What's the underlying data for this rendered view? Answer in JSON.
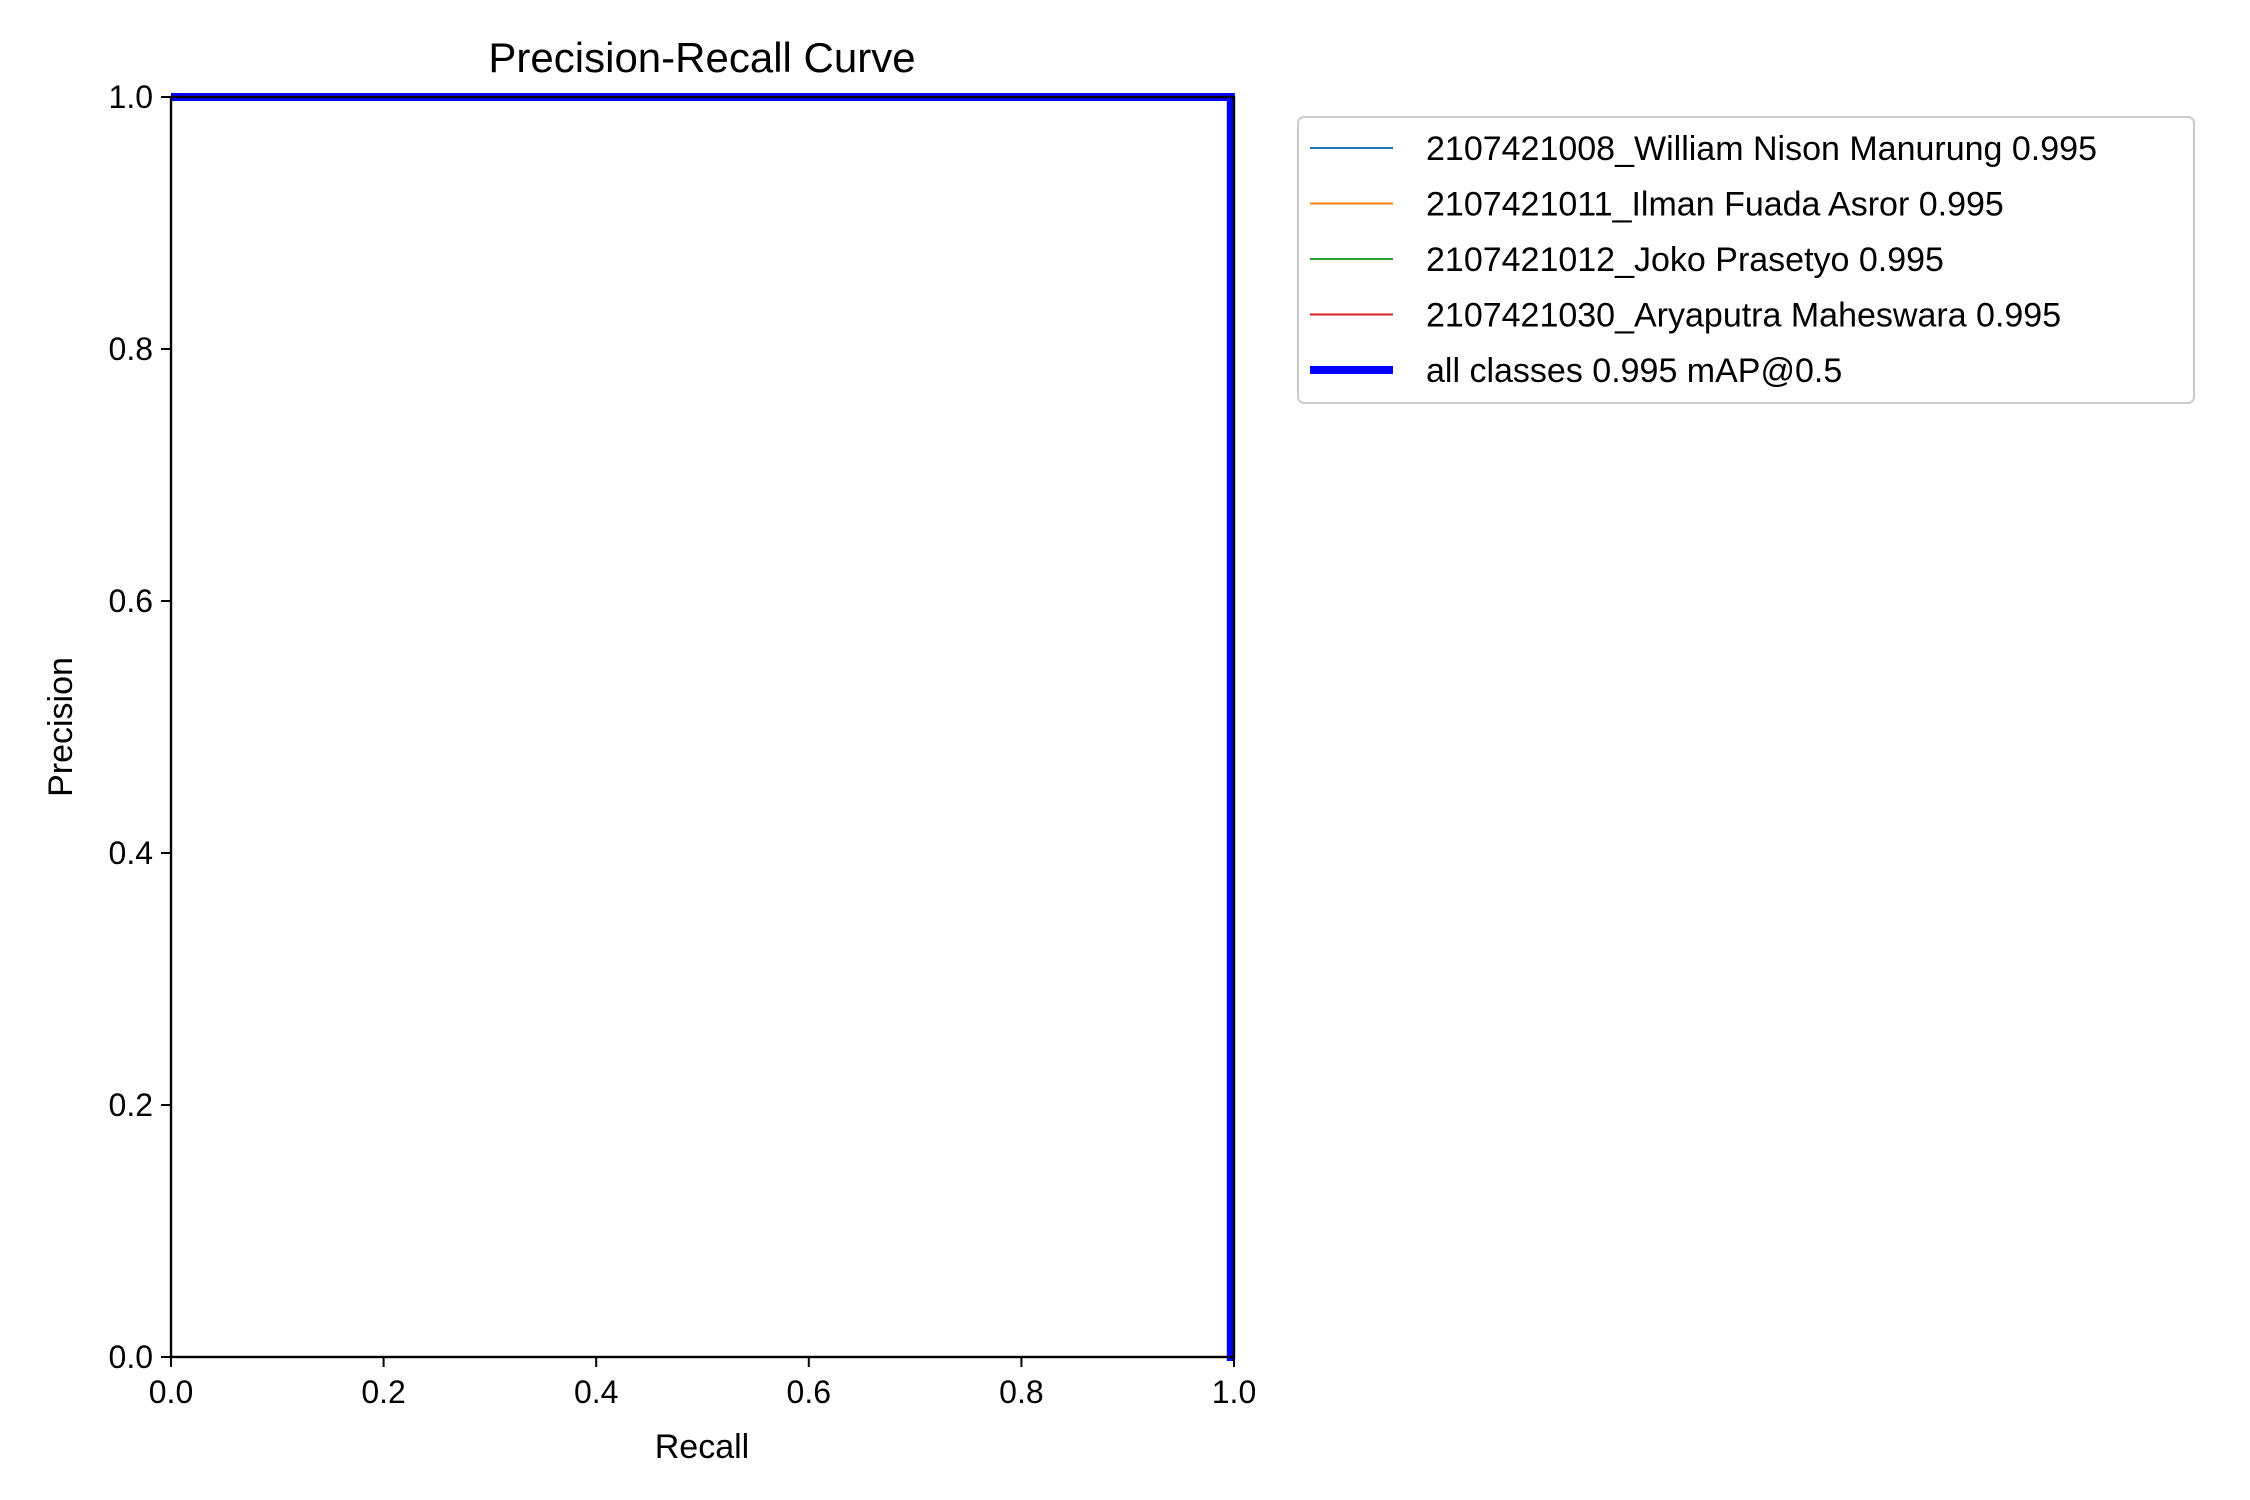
{
  "chart_data": {
    "type": "line",
    "title": "Precision-Recall Curve",
    "xlabel": "Recall",
    "ylabel": "Precision",
    "xlim": [
      0,
      1
    ],
    "ylim": [
      0,
      1
    ],
    "xticks": [
      "0.0",
      "0.2",
      "0.4",
      "0.6",
      "0.8",
      "1.0"
    ],
    "yticks": [
      "0.0",
      "0.2",
      "0.4",
      "0.6",
      "0.8",
      "1.0"
    ],
    "grid": false,
    "legend_position": "outside-top-right",
    "series": [
      {
        "name": "2107421008_William Nison Manurung 0.995",
        "color": "#1f77b4",
        "x": [
          0.0,
          0.997,
          0.997,
          1.0
        ],
        "y": [
          1.0,
          1.0,
          0.0,
          0.0
        ]
      },
      {
        "name": "2107421011_Ilman Fuada Asror 0.995",
        "color": "#ff7f0e",
        "x": [
          0.0,
          0.997,
          0.997,
          1.0
        ],
        "y": [
          1.0,
          1.0,
          0.0,
          0.0
        ]
      },
      {
        "name": "2107421012_Joko Prasetyo 0.995",
        "color": "#2ca02c",
        "x": [
          0.0,
          0.997,
          0.997,
          1.0
        ],
        "y": [
          1.0,
          1.0,
          0.0,
          0.0
        ]
      },
      {
        "name": "2107421030_Aryaputra Maheswara 0.995",
        "color": "#d62728",
        "x": [
          0.0,
          0.997,
          0.997,
          1.0
        ],
        "y": [
          1.0,
          1.0,
          0.0,
          0.0
        ]
      },
      {
        "name": "all classes 0.995 mAP@0.5",
        "color": "#0000ff",
        "x": [
          0.0,
          0.997,
          0.997,
          1.0
        ],
        "y": [
          1.0,
          1.0,
          0.0,
          0.0
        ]
      }
    ]
  }
}
